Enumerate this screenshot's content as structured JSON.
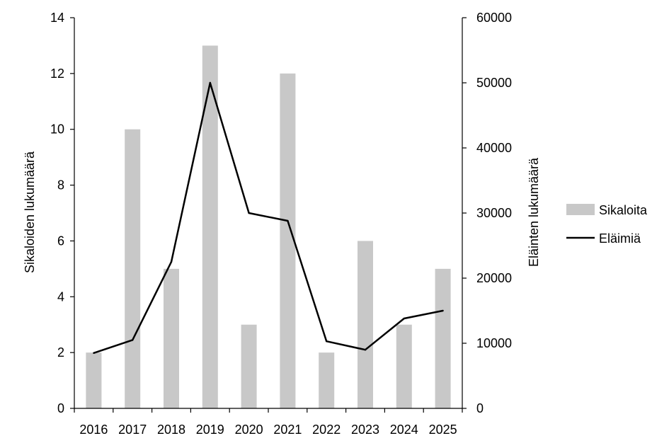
{
  "chart_data": {
    "type": "bar+line",
    "categories": [
      "2016",
      "2017",
      "2018",
      "2019",
      "2020",
      "2021",
      "2022",
      "2023",
      "2024",
      "2025"
    ],
    "series": [
      {
        "name": "Sikaloita",
        "type": "bar",
        "axis": "left",
        "color": "#c8c8c8",
        "values": [
          2,
          10,
          5,
          13,
          3,
          12,
          2,
          6,
          3,
          5
        ]
      },
      {
        "name": "Eläimiä",
        "type": "line",
        "axis": "right",
        "color": "#000000",
        "values": [
          8500,
          10500,
          22500,
          50000,
          30000,
          28800,
          10300,
          9000,
          13800,
          15000
        ]
      }
    ],
    "ylabel_left": "Sikaloiden lukumäärä",
    "ylabel_right": "Eläinten lukumäärä",
    "ylim_left": [
      0,
      14
    ],
    "ylim_right": [
      0,
      60000
    ],
    "yticks_left": [
      "0",
      "2",
      "4",
      "6",
      "8",
      "10",
      "12",
      "14"
    ],
    "yticks_right": [
      "0",
      "10000",
      "20000",
      "30000",
      "40000",
      "50000",
      "60000"
    ],
    "grid": false,
    "legend_position": "right"
  }
}
